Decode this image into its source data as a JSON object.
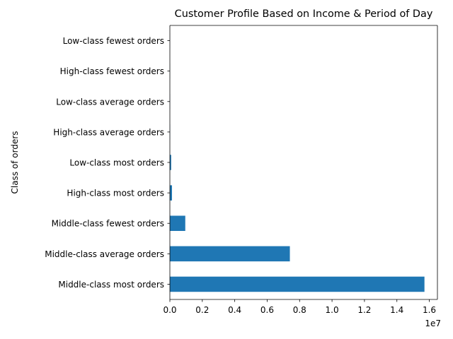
{
  "chart_data": {
    "type": "bar",
    "orientation": "horizontal",
    "title": "Customer Profile Based on Income & Period of Day",
    "xlabel": "",
    "ylabel": "Class of orders",
    "x_offset_label": "1e7",
    "xlim": [
      0,
      16500000
    ],
    "x_ticks": [
      0,
      2000000,
      4000000,
      6000000,
      8000000,
      10000000,
      12000000,
      14000000,
      16000000
    ],
    "x_tick_labels": [
      "0.0",
      "0.2",
      "0.4",
      "0.6",
      "0.8",
      "1.0",
      "1.2",
      "1.4",
      "1.6"
    ],
    "categories": [
      "Middle-class most orders",
      "Middle-class average orders",
      "Middle-class fewest orders",
      "High-class most orders",
      "Low-class most orders",
      "High-class average orders",
      "Low-class average orders",
      "High-class fewest orders",
      "Low-class fewest orders"
    ],
    "values": [
      15700000,
      7400000,
      950000,
      130000,
      80000,
      8000,
      5000,
      3000,
      1500
    ],
    "bar_color": "#1f77b4",
    "grid": false,
    "legend": "none"
  }
}
